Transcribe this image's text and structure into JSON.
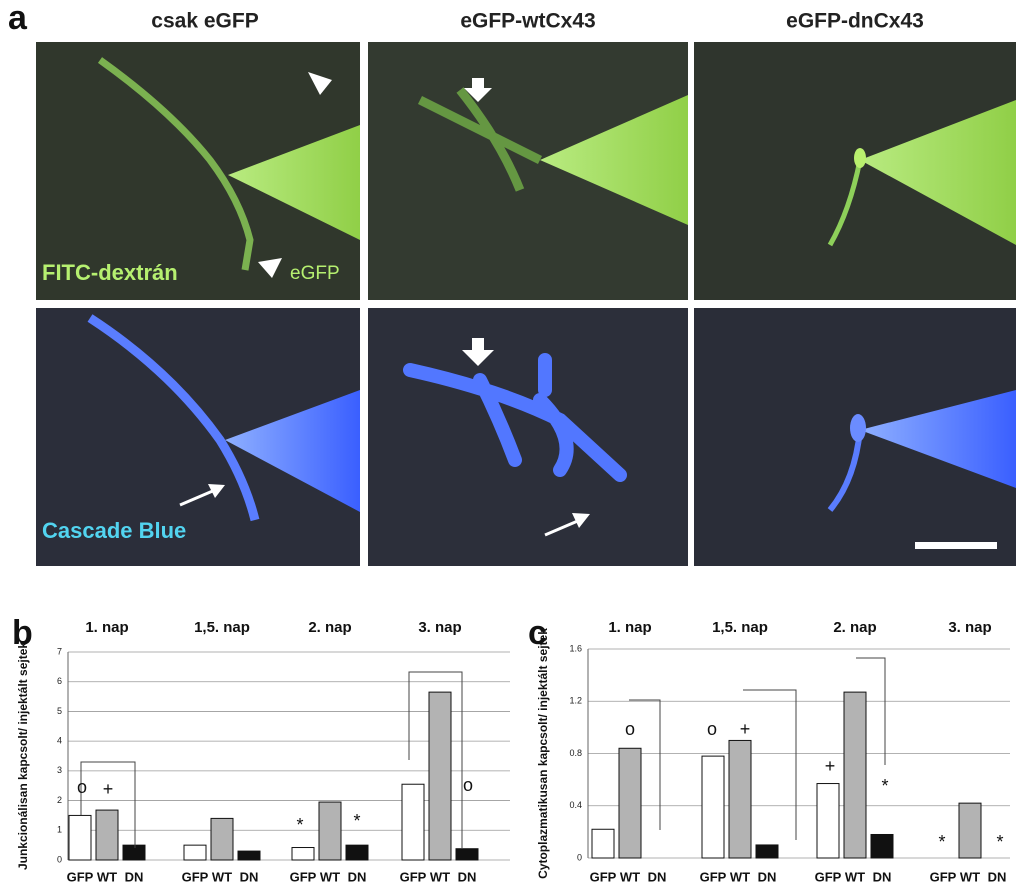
{
  "panel_a": {
    "label": "a",
    "columns": [
      "csak eGFP",
      "eGFP-wtCx43",
      "eGFP-dnCx43"
    ],
    "labels": [
      "FITC-dextrán",
      "eGFP",
      "Cascade Blue"
    ]
  },
  "chart_data": [
    {
      "type": "bar",
      "panel_label": "b",
      "groups": [
        "1. nap",
        "1,5. nap",
        "2. nap",
        "3. nap"
      ],
      "ylabel": "Junkcionálisan kapcsolt/ injektált sejtek",
      "series": [
        {
          "name": "GFP",
          "color": "#ffffff",
          "values": [
            1.5,
            0.5,
            0.42,
            2.55
          ]
        },
        {
          "name": "WT",
          "color": "#b3b3b3",
          "values": [
            1.68,
            1.4,
            1.95,
            5.65
          ]
        },
        {
          "name": "DN",
          "color": "#111111",
          "values": [
            0.5,
            0.3,
            0.5,
            0.38
          ]
        }
      ],
      "ylim": [
        0,
        7
      ],
      "yticks": [
        0,
        1,
        2,
        3,
        4,
        5,
        6,
        7
      ],
      "grid": true,
      "annotations": [
        "o",
        "+",
        "*",
        "*",
        "o"
      ]
    },
    {
      "type": "bar",
      "panel_label": "c",
      "groups": [
        "1. nap",
        "1,5. nap",
        "2. nap",
        "3. nap"
      ],
      "ylabel": "Cytoplazmatikusan kapcsolt/ injektált sejtek",
      "series": [
        {
          "name": "GFP",
          "color": "#ffffff",
          "values": [
            0.22,
            0.78,
            0.57,
            0
          ]
        },
        {
          "name": "WT",
          "color": "#b3b3b3",
          "values": [
            0.84,
            0.9,
            1.27,
            0.42
          ]
        },
        {
          "name": "DN",
          "color": "#111111",
          "values": [
            0,
            0.1,
            0.18,
            0
          ]
        }
      ],
      "ylim": [
        0,
        1.6
      ],
      "yticks": [
        0,
        0.4,
        0.8,
        1.2,
        1.6
      ],
      "grid": true,
      "annotations": [
        "o",
        "o",
        "+",
        "+",
        "*",
        "*",
        "*"
      ]
    }
  ]
}
